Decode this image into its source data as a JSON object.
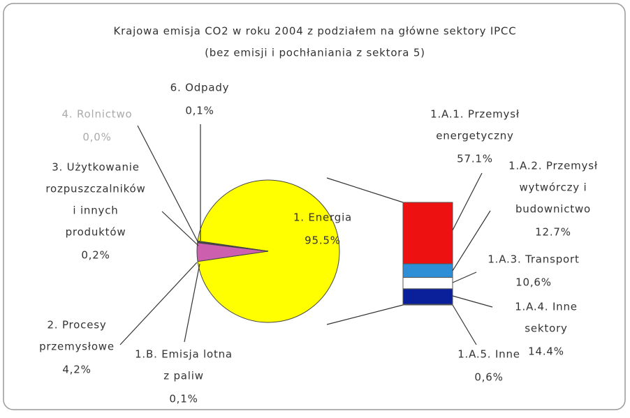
{
  "chart_data": {
    "type": "pie",
    "title": "Krajowa emisja CO2 w roku 2004 z podziałem na główne sektory IPCC",
    "subtitle": "(bez emisji i pochłaniania z sektora 5)",
    "categories": [
      [
        "1. Energia"
      ],
      [
        "2. Procesy",
        "przemysłowe"
      ],
      [
        "1.B. Emisja lotna",
        "z paliw"
      ],
      [
        "3. Użytkowanie",
        "rozpuszczalników",
        "i innych",
        "produktów"
      ],
      [
        "4. Rolnictwo"
      ],
      [
        "6. Odpady"
      ]
    ],
    "values": [
      95.5,
      4.2,
      0.1,
      0.2,
      0.0,
      0.1
    ],
    "value_labels": [
      "95.5%",
      "4,2%",
      "0,1%",
      "0,2%",
      "0,0%",
      "0,1%"
    ],
    "colors": [
      "#ffff00",
      "#cc5fae",
      "#8080c0",
      "#60a0a0",
      "#a0c060",
      "#c08040"
    ],
    "bar": {
      "categories": [
        [
          "1.A.1.  Przemysł",
          "energetyczny"
        ],
        [
          "1.A.2.  Przemysł",
          "wytwórczy i",
          "budownictwo"
        ],
        [
          "1.A.3. Transport"
        ],
        [
          "1.A.4.  Inne",
          "sektory"
        ],
        [
          "1.A.5. Inne"
        ]
      ],
      "values": [
        57.1,
        12.7,
        10.6,
        14.4,
        0.6
      ],
      "value_labels": [
        "57.1%",
        "12.7%",
        "10,6%",
        "14.4%",
        "0,6%"
      ],
      "colors": [
        "#ee1111",
        "#2e8fd6",
        "#ffffff",
        "#0a1f9a",
        "#d0509a"
      ]
    }
  }
}
